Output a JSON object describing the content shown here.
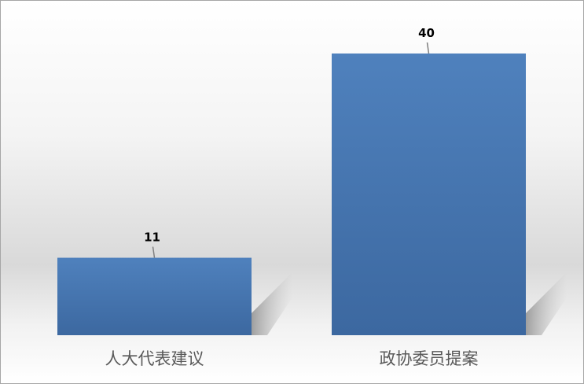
{
  "chart_data": {
    "type": "bar",
    "categories": [
      "人大代表建议",
      "政协委员提案"
    ],
    "values": [
      11,
      40
    ],
    "data_labels": [
      "11",
      "40"
    ],
    "title": "",
    "xlabel": "",
    "ylabel": "",
    "ylim": [
      0,
      40
    ],
    "grid": false,
    "legend": "none",
    "bar_color": "#4a7ebb"
  }
}
